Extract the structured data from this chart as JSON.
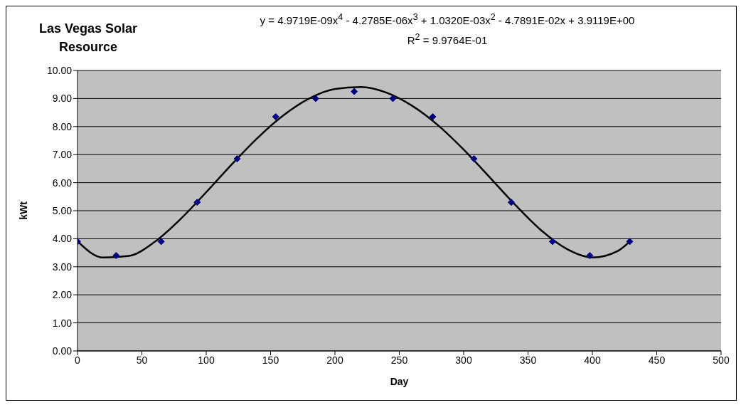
{
  "chart_data": {
    "type": "scatter",
    "title": "Las Vegas Solar Resource",
    "xlabel": "Day",
    "ylabel": "kWt",
    "annotations": [
      "y = 4.9719E-09x$^{4}$ - 4.2785E-06x$^{3}$ + 1.0320E-03x$^{2}$ - 4.7891E-02x + 3.9119E+00",
      "R$^{2}$ = 9.9764E-01"
    ],
    "xlim": [
      0,
      500
    ],
    "xticks": [
      0,
      50,
      100,
      150,
      200,
      250,
      300,
      350,
      400,
      450,
      500
    ],
    "ylim": [
      0,
      10
    ],
    "yticks": [
      {
        "value": 0,
        "label": "0.00"
      },
      {
        "value": 1,
        "label": "1.00"
      },
      {
        "value": 2,
        "label": "2.00"
      },
      {
        "value": 3,
        "label": "3.00"
      },
      {
        "value": 4,
        "label": "4.00"
      },
      {
        "value": 5,
        "label": "5.00"
      },
      {
        "value": 6,
        "label": "6.00"
      },
      {
        "value": 7,
        "label": "7.00"
      },
      {
        "value": 8,
        "label": "8.00"
      },
      {
        "value": 9,
        "label": "9.00"
      },
      {
        "value": 10,
        "label": "10.00"
      }
    ],
    "grid": "y",
    "series": [
      {
        "marker": "diamond",
        "color": "#000080",
        "x": [
          0,
          30,
          65,
          93,
          124,
          154,
          185,
          215,
          245,
          276,
          308,
          337,
          369,
          398,
          429
        ],
        "values": [
          3.9,
          3.4,
          3.9,
          5.3,
          6.85,
          8.35,
          9.0,
          9.25,
          9.0,
          8.35,
          6.85,
          5.3,
          3.9,
          3.4,
          3.9
        ]
      },
      {
        "type": "line",
        "color": "#000000",
        "x": [
          0,
          20,
          40,
          60,
          80,
          100,
          120,
          140,
          160,
          180,
          200,
          220,
          240,
          260,
          280,
          300,
          320,
          340,
          360,
          380,
          400,
          420,
          429
        ],
        "values": [
          3.91,
          3.33,
          3.39,
          3.89,
          4.7,
          5.66,
          6.66,
          7.6,
          8.4,
          9.0,
          9.34,
          9.41,
          9.21,
          8.74,
          8.05,
          7.18,
          6.2,
          5.21,
          4.31,
          3.64,
          3.33,
          3.57,
          3.9
        ]
      }
    ]
  }
}
